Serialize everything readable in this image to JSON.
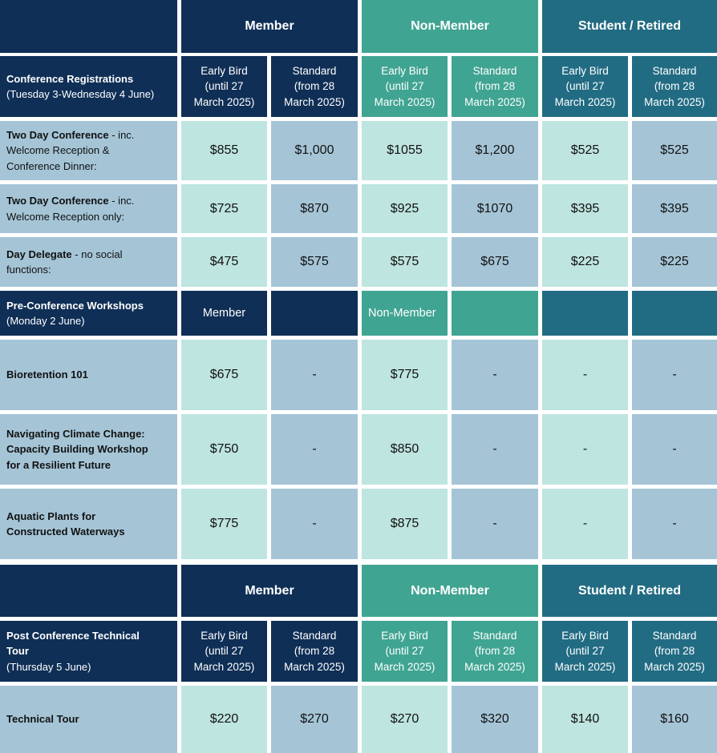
{
  "groups": [
    "Member",
    "Non-Member",
    "Student / Retired"
  ],
  "sub_headers": [
    [
      "Early Bird",
      "(until 27",
      "March 2025)"
    ],
    [
      "Standard",
      "(from 28",
      "March 2025)"
    ],
    [
      "Early Bird",
      "(until 27",
      "March 2025)"
    ],
    [
      "Standard",
      "(from 28",
      "March 2025)"
    ],
    [
      "Early Bird",
      "(until 27",
      "March 2025)"
    ],
    [
      "Standard",
      "(from 28",
      "March 2025)"
    ]
  ],
  "conference": {
    "title": "Conference Registrations",
    "dates": "(Tuesday 3-Wednesday 4 June)",
    "rows": [
      {
        "bold": "Two Day Conference",
        "rest1": " - inc.",
        "line2": "Welcome Reception &",
        "line3": "Conference Dinner:",
        "prices": [
          "$855",
          "$1,000",
          "$1055",
          "$1,200",
          "$525",
          "$525"
        ]
      },
      {
        "bold": "Two Day Conference",
        "rest1": " - inc.",
        "line2": "Welcome Reception only:",
        "prices": [
          "$725",
          "$870",
          "$925",
          "$1070",
          "$395",
          "$395"
        ]
      },
      {
        "bold": "Day Delegate",
        "rest1": " - no social",
        "line2": "functions:",
        "prices": [
          "$475",
          "$575",
          "$575",
          "$675",
          "$225",
          "$225"
        ]
      }
    ]
  },
  "workshops": {
    "title": "Pre-Conference Workshops",
    "dates": "(Monday 2 June)",
    "member_label": "Member",
    "non_member_label": "Non-Member",
    "rows": [
      {
        "lines": [
          "Bioretention 101"
        ],
        "prices": [
          "$675",
          "-",
          "$775",
          "-",
          "-",
          "-"
        ]
      },
      {
        "lines": [
          "Navigating Climate Change:",
          "Capacity Building Workshop",
          "for a Resilient Future"
        ],
        "prices": [
          "$750",
          "-",
          "$850",
          "-",
          "-",
          "-"
        ]
      },
      {
        "lines": [
          "Aquatic Plants for",
          "Constructed Waterways"
        ],
        "prices": [
          "$775",
          "-",
          "$875",
          "-",
          "-",
          "-"
        ]
      }
    ]
  },
  "tour": {
    "title_lines": [
      "Post Conference Technical",
      "Tour"
    ],
    "dates": "(Thursday 5 June)",
    "rows": [
      {
        "label": "Technical Tour",
        "prices": [
          "$220",
          "$270",
          "$270",
          "$320",
          "$140",
          "$160"
        ]
      }
    ]
  },
  "colors": {
    "member_header": "#0f2f56",
    "non_member_header": "#40a492",
    "student_header": "#226c83",
    "early_bird_cell": "#bee5df",
    "standard_cell": "#a5c5d7"
  }
}
